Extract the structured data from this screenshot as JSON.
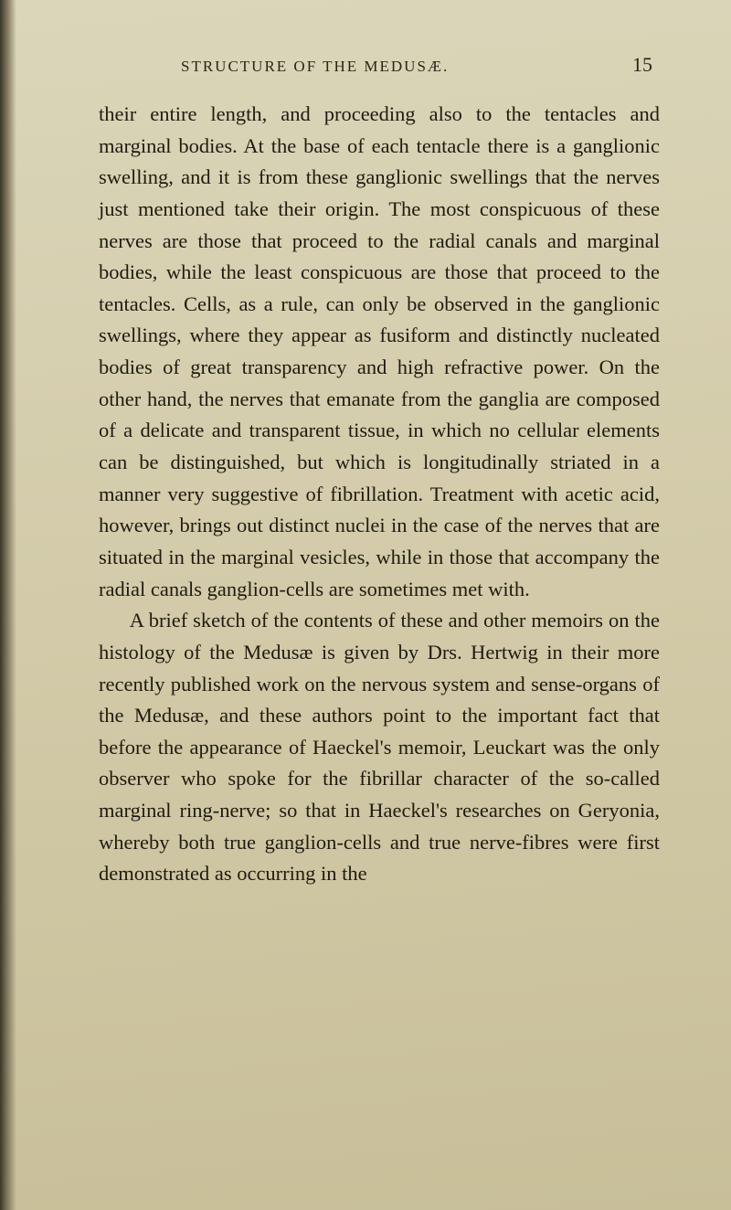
{
  "page": {
    "running_title": "STRUCTURE OF THE MEDUSÆ.",
    "page_number": "15",
    "paragraphs": [
      "their entire length, and proceeding also to the ten­tacles and marginal bodies. At the base of each tentacle there is a ganglionic swelling, and it is from these ganglionic swellings that the nerves just mentioned take their origin. The most conspicuous of these nerves are those that proceed to the radial canals and marginal bodies, while the least con­spicuous are those that proceed to the tentacles. Cells, as a rule, can only be observed in the gan­glionic swellings, where they appear as fusiform and distinctly nucleated bodies of great transparency and high refractive power. On the other hand, the nerves that emanate from the ganglia are composed of a delicate and transparent tissue, in which no cellular elements can be distinguished, but which is longitudinally striated in a manner very suggestive of fibrillation. Treatment with acetic acid, how­ever, brings out distinct nuclei in the case of the nerves that are situated in the marginal vesicles, while in those that accompany the radial canals ganglion-cells are sometimes met with.",
      "A brief sketch of the contents of these and other memoirs on the histology of the Medusæ is given by Drs. Hertwig in their more recently published work on the nervous system and sense-organs of the Medusæ, and these authors point to the important fact that before the appearance of Haeckel's memoir, Leuckart was the only observer who spoke for the fibrillar character of the so-called marginal ring-nerve; so that in Haeckel's researches on Geryonia, whereby both true ganglion-cells and true nerve-fibres were first demonstrated as occurring in the"
    ]
  },
  "style": {
    "background_color": "#d9d4b8",
    "text_color": "#1f1b10",
    "header_color": "#2a2518",
    "body_fontsize": 22.5,
    "header_fontsize": 17,
    "pagenum_fontsize": 22,
    "line_height": 1.54,
    "font_family": "Georgia, Times New Roman, serif"
  }
}
